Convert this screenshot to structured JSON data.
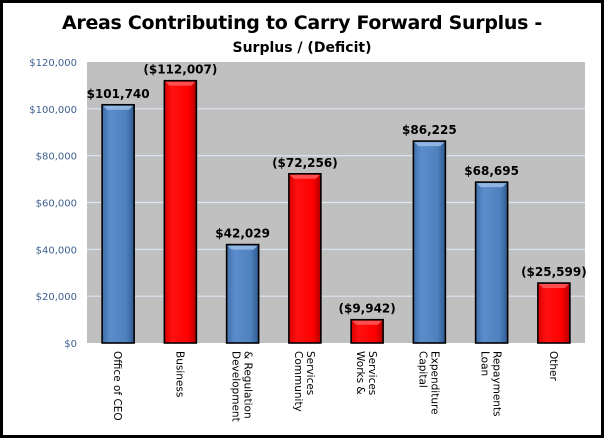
{
  "chart_data": {
    "type": "bar",
    "title": "Areas Contributing to Carry Forward Surplus -",
    "subtitle": "Surplus / (Deficit)",
    "xlabel": "",
    "ylabel": "",
    "ylim": [
      0,
      120000
    ],
    "yticks": [
      0,
      20000,
      40000,
      60000,
      80000,
      100000,
      120000
    ],
    "ytick_labels": [
      "$0",
      "$20,000",
      "$40,000",
      "$60,000",
      "$80,000",
      "$100,000",
      "$120,000"
    ],
    "grid": true,
    "legend": "none",
    "categories": [
      [
        "Office of CEO"
      ],
      [
        "Business"
      ],
      [
        "Development",
        "& Regulation"
      ],
      [
        "Community",
        "Services"
      ],
      [
        "Works &",
        "Services"
      ],
      [
        "Capital",
        "Expenditure"
      ],
      [
        "Loan",
        "Repayments"
      ],
      [
        "Other"
      ]
    ],
    "values": [
      101740,
      112007,
      42029,
      72256,
      9942,
      86225,
      68695,
      25599
    ],
    "sign": [
      "surplus",
      "deficit",
      "surplus",
      "deficit",
      "deficit",
      "surplus",
      "surplus",
      "deficit"
    ],
    "data_labels": [
      "$101,740",
      "($112,007)",
      "$42,029",
      "($72,256)",
      "($9,942)",
      "$86,225",
      "$68,695",
      "($25,599)"
    ],
    "colors": {
      "surplus": "#4f81bd",
      "deficit": "#ff0000",
      "plot_bg": "#c0c0c0",
      "grid": "#dce6f2",
      "tick_text": "#3d5f8f"
    }
  }
}
